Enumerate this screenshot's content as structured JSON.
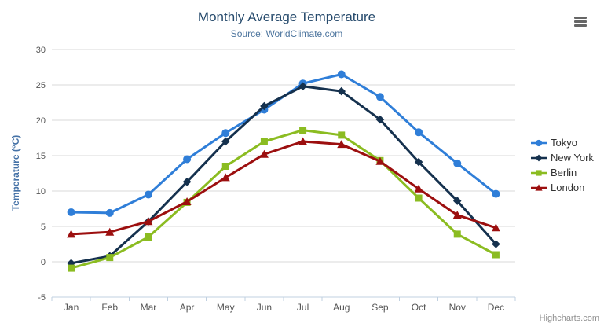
{
  "header": {
    "title": "Monthly Average Temperature",
    "subtitle": "Source: WorldClimate.com"
  },
  "chart_data": {
    "type": "line",
    "title": "Monthly Average Temperature",
    "subtitle": "Source: WorldClimate.com",
    "categories": [
      "Jan",
      "Feb",
      "Mar",
      "Apr",
      "May",
      "Jun",
      "Jul",
      "Aug",
      "Sep",
      "Oct",
      "Nov",
      "Dec"
    ],
    "series": [
      {
        "name": "Tokyo",
        "marker": "circle",
        "color": "#2f7ed8",
        "values": [
          7.0,
          6.9,
          9.5,
          14.5,
          18.2,
          21.5,
          25.2,
          26.5,
          23.3,
          18.3,
          13.9,
          9.6
        ]
      },
      {
        "name": "New York",
        "marker": "diamond",
        "color": "#15314e",
        "values": [
          -0.2,
          0.8,
          5.7,
          11.3,
          17.0,
          22.0,
          24.8,
          24.1,
          20.1,
          14.1,
          8.6,
          2.5
        ]
      },
      {
        "name": "Berlin",
        "marker": "square",
        "color": "#8bbc21",
        "values": [
          -0.9,
          0.6,
          3.5,
          8.4,
          13.5,
          17.0,
          18.6,
          17.9,
          14.3,
          9.0,
          3.9,
          1.0
        ]
      },
      {
        "name": "London",
        "marker": "triangle",
        "color": "#9c0f0f",
        "values": [
          3.9,
          4.2,
          5.7,
          8.5,
          11.9,
          15.2,
          17.0,
          16.6,
          14.2,
          10.3,
          6.6,
          4.8
        ]
      }
    ],
    "xlabel": "",
    "ylabel": "Temperature (°C)",
    "ylim": [
      -5,
      30
    ],
    "ytick_step": 5,
    "yticks": [
      -5,
      0,
      5,
      10,
      15,
      20,
      25,
      30
    ],
    "grid": true,
    "legend_position": "right"
  },
  "colors": {
    "title": "#274b6d",
    "subtitle": "#4d759e",
    "axis_labels": "#555555",
    "y_axis_title": "#4572a7",
    "gridline": "#d8d8d8",
    "axis_line": "#c0d0e0",
    "legend_text": "#333333",
    "export_icon": "#666666",
    "credits": "#909090"
  },
  "export_menu": {
    "icon": "hamburger-menu-icon"
  },
  "credits": {
    "label": "Highcharts.com"
  }
}
